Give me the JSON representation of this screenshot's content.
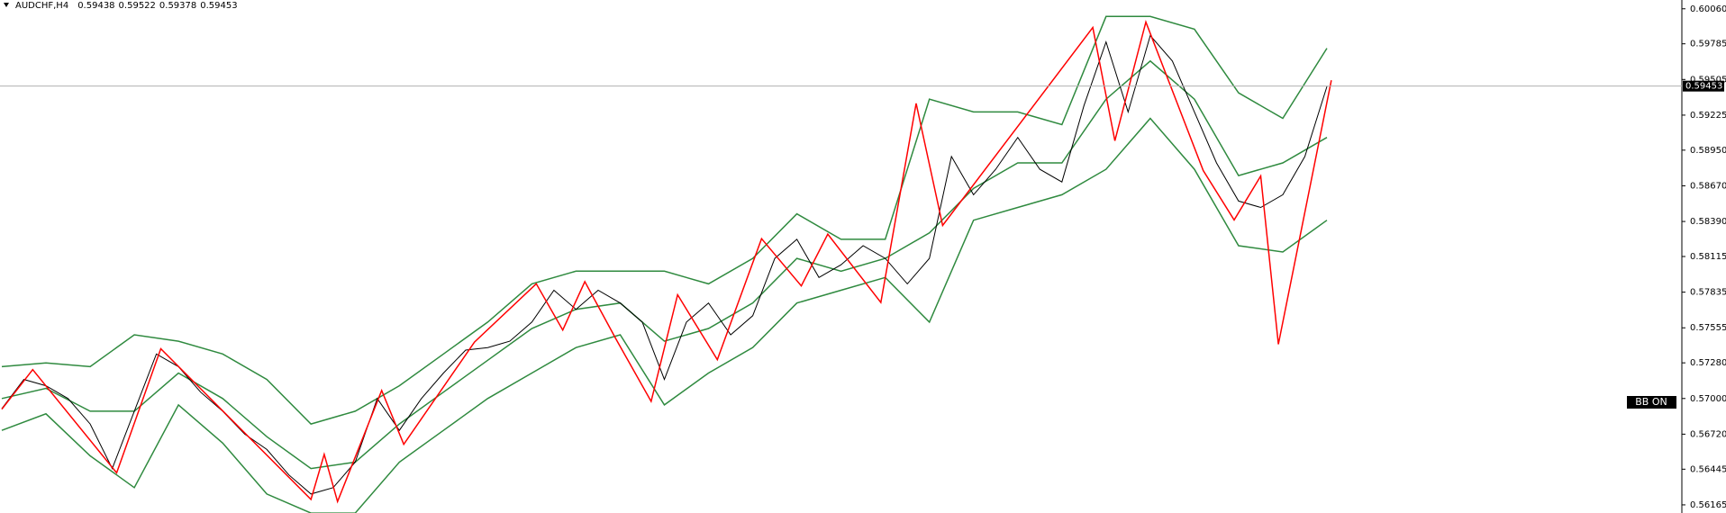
{
  "chart_data": {
    "type": "line",
    "title": "AUDCHF,H4",
    "header_values": [
      0.59438,
      0.59522,
      0.59378,
      0.59453
    ],
    "current_price": 0.59453,
    "indicator_label": "BB ON",
    "xlim": [
      0,
      300
    ],
    "ylim": [
      0.56101,
      0.60129
    ],
    "yticks": [
      {
        "value": 0.6006,
        "label": "0.60060"
      },
      {
        "value": 0.59785,
        "label": "0.59785"
      },
      {
        "value": 0.59505,
        "label": "0.59505"
      },
      {
        "value": 0.59225,
        "label": "0.59225"
      },
      {
        "value": 0.5895,
        "label": "0.58950"
      },
      {
        "value": 0.5867,
        "label": "0.58670"
      },
      {
        "value": 0.5839,
        "label": "0.58390"
      },
      {
        "value": 0.58115,
        "label": "0.58115"
      },
      {
        "value": 0.57835,
        "label": "0.57835"
      },
      {
        "value": 0.57555,
        "label": "0.57555"
      },
      {
        "value": 0.5728,
        "label": "0.57280"
      },
      {
        "value": 0.57,
        "label": "0.57000"
      },
      {
        "value": 0.5672,
        "label": "0.56720"
      },
      {
        "value": 0.56445,
        "label": "0.56445"
      },
      {
        "value": 0.56165,
        "label": "0.56165"
      }
    ],
    "price": {
      "color": "#000000",
      "values": [
        0.5692,
        0.5715,
        0.571,
        0.57,
        0.568,
        0.5645,
        0.569,
        0.5735,
        0.5725,
        0.5705,
        0.569,
        0.5672,
        0.566,
        0.564,
        0.5625,
        0.563,
        0.565,
        0.57,
        0.5675,
        0.57,
        0.572,
        0.5738,
        0.574,
        0.5745,
        0.576,
        0.5785,
        0.577,
        0.5785,
        0.5775,
        0.576,
        0.5715,
        0.576,
        0.5775,
        0.575,
        0.5765,
        0.581,
        0.5825,
        0.5795,
        0.5805,
        0.582,
        0.581,
        0.579,
        0.581,
        0.589,
        0.586,
        0.588,
        0.5905,
        0.588,
        0.587,
        0.593,
        0.598,
        0.5925,
        0.5985,
        0.5965,
        0.5925,
        0.5885,
        0.5855,
        0.585,
        0.586,
        0.589,
        0.5945
      ]
    },
    "bands": {
      "color": "#2f8a3f",
      "upper": [
        0.5725,
        0.5728,
        0.5725,
        0.575,
        0.5745,
        0.5735,
        0.5715,
        0.568,
        0.569,
        0.571,
        0.5735,
        0.576,
        0.579,
        0.58,
        0.58,
        0.58,
        0.579,
        0.581,
        0.5845,
        0.5825,
        0.5825,
        0.5935,
        0.5925,
        0.5925,
        0.5915,
        0.6,
        0.6,
        0.599,
        0.594,
        0.592,
        0.5975
      ],
      "middle": [
        0.57,
        0.5708,
        0.569,
        0.569,
        0.572,
        0.57,
        0.567,
        0.5645,
        0.565,
        0.568,
        0.5705,
        0.573,
        0.5755,
        0.577,
        0.5775,
        0.5745,
        0.5755,
        0.5775,
        0.581,
        0.58,
        0.581,
        0.583,
        0.5865,
        0.5885,
        0.5885,
        0.5935,
        0.5965,
        0.5935,
        0.5875,
        0.5885,
        0.5905
      ],
      "lower": [
        0.5675,
        0.5688,
        0.5655,
        0.563,
        0.5695,
        0.5665,
        0.5625,
        0.561,
        0.561,
        0.565,
        0.5675,
        0.57,
        0.572,
        0.574,
        0.575,
        0.5695,
        0.572,
        0.574,
        0.5775,
        0.5785,
        0.5795,
        0.576,
        0.584,
        0.585,
        0.586,
        0.588,
        0.592,
        0.588,
        0.582,
        0.5815,
        0.584
      ]
    },
    "zigzag": {
      "color": "#ff0000",
      "x": [
        0,
        7,
        26,
        36,
        70,
        73,
        76,
        86,
        91,
        107,
        121,
        127,
        132,
        139,
        147,
        153,
        162,
        172,
        181,
        187,
        199,
        207,
        213,
        247,
        252,
        259,
        272,
        279,
        285,
        289,
        301
      ],
      "values": [
        0.56916,
        0.57227,
        0.56416,
        0.57391,
        0.56208,
        0.56562,
        0.56191,
        0.57063,
        0.5664,
        0.57443,
        0.57901,
        0.57538,
        0.57918,
        0.57469,
        0.56977,
        0.57815,
        0.57305,
        0.58255,
        0.57884,
        0.5829,
        0.57754,
        0.59317,
        0.58359,
        0.59913,
        0.59024,
        0.59956,
        0.5879,
        0.58402,
        0.58747,
        0.57426,
        0.59499
      ]
    }
  }
}
